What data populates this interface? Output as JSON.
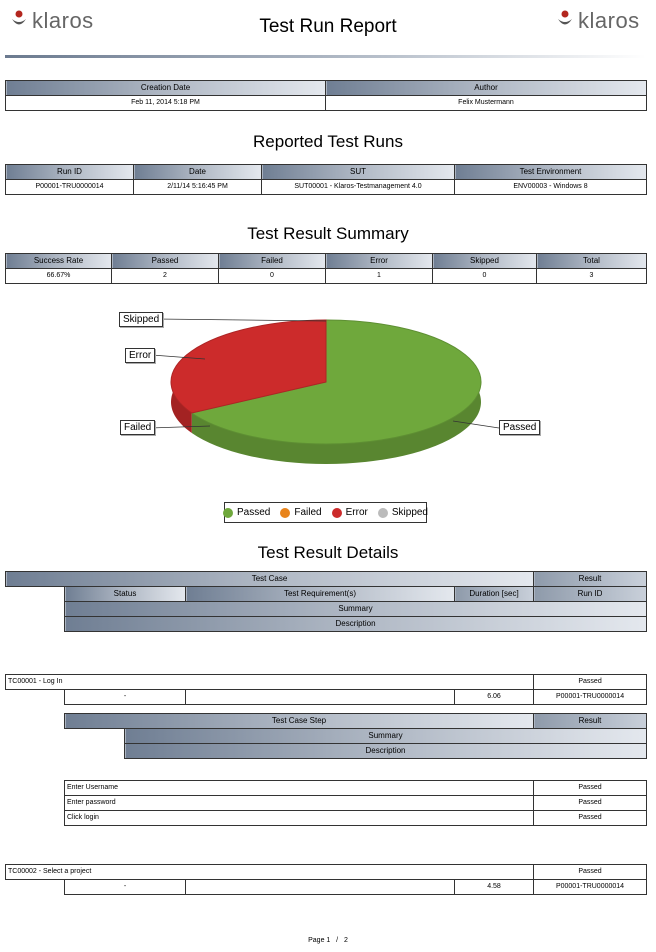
{
  "brand": {
    "left_logo": "klaros",
    "right_logo": "klaros"
  },
  "title": "Test Run Report",
  "creation": {
    "headers": [
      "Creation Date",
      "Author"
    ],
    "values": [
      "Feb 11, 2014 5:18 PM",
      "Felix Mustermann"
    ]
  },
  "runs": {
    "heading": "Reported Test Runs",
    "headers": [
      "Run ID",
      "Date",
      "SUT",
      "Test Environment"
    ],
    "row": [
      "P00001-TRU0000014",
      "2/11/14 5:16:45 PM",
      "SUT00001 - Klaros-Testmanagement 4.0",
      "ENV00003 - Windows 8"
    ]
  },
  "summary": {
    "heading": "Test Result Summary",
    "headers": [
      "Success Rate",
      "Passed",
      "Failed",
      "Error",
      "Skipped",
      "Total"
    ],
    "row": [
      "66.67%",
      "2",
      "0",
      "1",
      "0",
      "3"
    ]
  },
  "chart_data": {
    "type": "pie",
    "categories": [
      "Passed",
      "Failed",
      "Error",
      "Skipped"
    ],
    "values": [
      2,
      0,
      1,
      0
    ],
    "colors": [
      "#6fa83c",
      "#e8841c",
      "#cc2b2b",
      "#bbbbbb"
    ],
    "legend_position": "bottom"
  },
  "details": {
    "heading": "Test Result Details",
    "head": {
      "test_case": "Test Case",
      "result": "Result",
      "status": "Status",
      "requirements": "Test Requirement(s)",
      "duration": "Duration [sec]",
      "run_id": "Run ID",
      "summary": "Summary",
      "description": "Description"
    },
    "step_head": {
      "step": "Test Case Step",
      "result": "Result",
      "summary": "Summary",
      "description": "Description"
    },
    "cases": [
      {
        "name": "TC00001 - Log In",
        "result": "Passed",
        "status": "-",
        "requirements": "",
        "duration": "6.06",
        "run_id": "P00001-TRU0000014",
        "steps": [
          {
            "name": "Enter Username",
            "result": "Passed"
          },
          {
            "name": "Enter password",
            "result": "Passed"
          },
          {
            "name": "Click login",
            "result": "Passed"
          }
        ]
      },
      {
        "name": "TC00002 - Select a project",
        "result": "Passed",
        "status": "-",
        "requirements": "",
        "duration": "4.58",
        "run_id": "P00001-TRU0000014"
      }
    ]
  },
  "footer": {
    "page": "Page 1",
    "sep": "/",
    "total": "2"
  }
}
